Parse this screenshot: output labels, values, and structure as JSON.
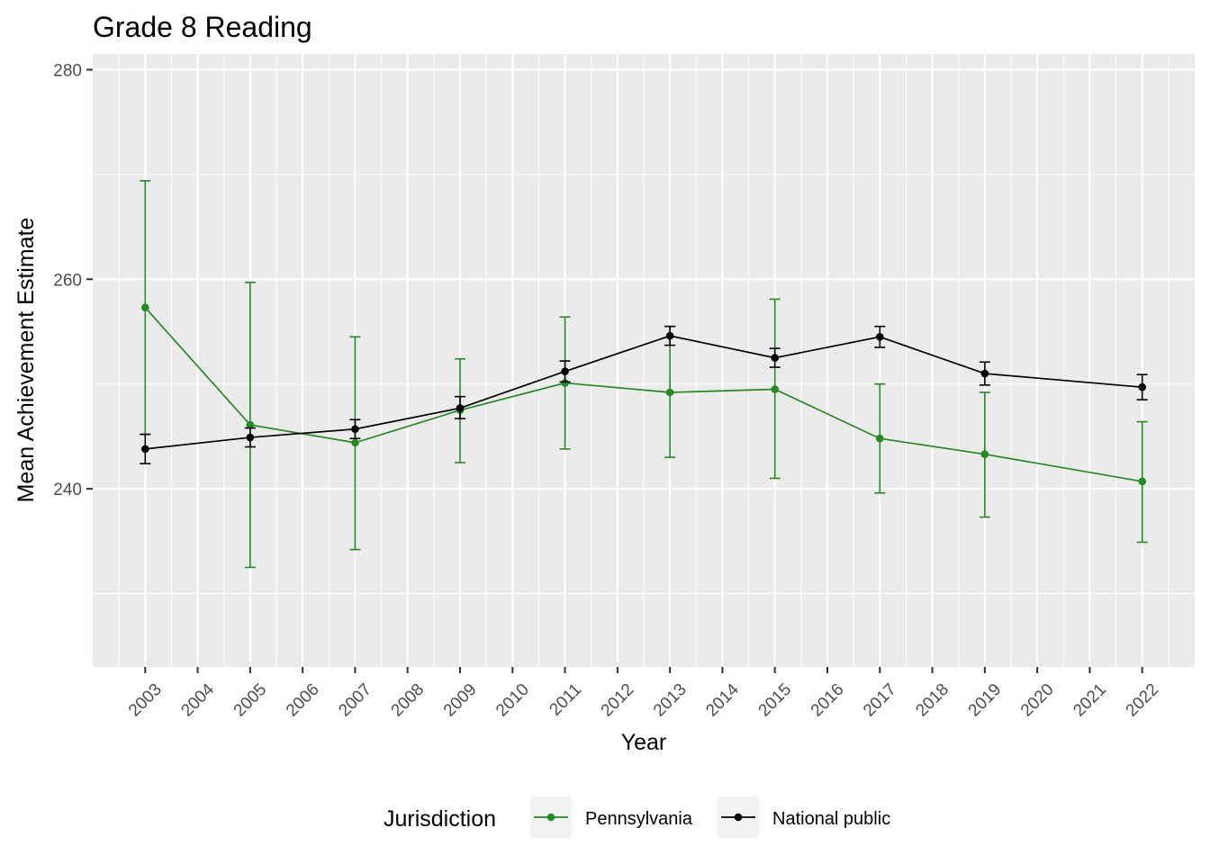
{
  "chart_data": {
    "type": "line",
    "title": "Grade 8 Reading",
    "xlabel": "Year",
    "ylabel": "Mean Achievement Estimate",
    "x_ticks": [
      "2003",
      "2004",
      "2005",
      "2006",
      "2007",
      "2008",
      "2009",
      "2010",
      "2011",
      "2012",
      "2013",
      "2014",
      "2015",
      "2016",
      "2017",
      "2018",
      "2019",
      "2020",
      "2021",
      "2022"
    ],
    "y_ticks": [
      240,
      260,
      280
    ],
    "xlim": [
      2002,
      2023
    ],
    "ylim": [
      223,
      281.5
    ],
    "grid": true,
    "legend_title": "Jurisdiction",
    "legend_position": "bottom",
    "series": [
      {
        "name": "Pennsylvania",
        "color": "#228B22",
        "x": [
          2003,
          2005,
          2007,
          2009,
          2011,
          2013,
          2015,
          2017,
          2019,
          2022
        ],
        "y": [
          257.3,
          246.1,
          244.4,
          247.5,
          250.1,
          249.2,
          249.5,
          244.8,
          243.3,
          240.7
        ],
        "err_low": [
          245.2,
          232.5,
          234.2,
          242.5,
          243.8,
          243.0,
          241.0,
          239.6,
          237.3,
          234.9
        ],
        "err_high": [
          269.4,
          259.7,
          254.5,
          252.4,
          256.4,
          255.5,
          258.1,
          250.0,
          249.2,
          246.4
        ]
      },
      {
        "name": "National public",
        "color": "#000000",
        "x": [
          2003,
          2005,
          2007,
          2009,
          2011,
          2013,
          2015,
          2017,
          2019,
          2022
        ],
        "y": [
          243.8,
          244.9,
          245.7,
          247.7,
          251.2,
          254.6,
          252.5,
          254.5,
          251.0,
          249.7
        ],
        "err_low": [
          242.4,
          244.0,
          244.8,
          246.7,
          250.2,
          253.7,
          251.6,
          253.5,
          249.9,
          248.5
        ],
        "err_high": [
          245.2,
          245.8,
          246.6,
          248.8,
          252.2,
          255.5,
          253.4,
          255.5,
          252.1,
          250.9
        ]
      }
    ]
  }
}
